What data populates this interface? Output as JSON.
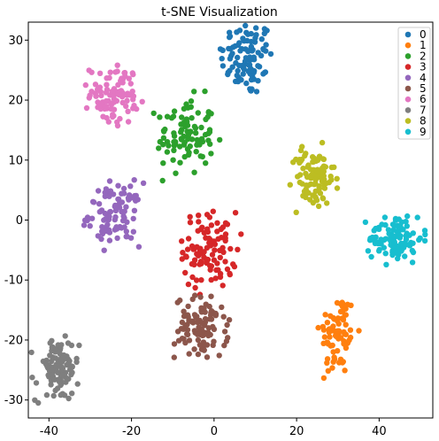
{
  "chart_data": {
    "type": "scatter",
    "title": "t-SNE Visualization",
    "xlabel": "",
    "ylabel": "",
    "xlim": [
      -45,
      53
    ],
    "ylim": [
      -33,
      33
    ],
    "xticks": [
      -40,
      -20,
      0,
      20,
      40
    ],
    "yticks": [
      -30,
      -20,
      -10,
      0,
      10,
      20,
      30
    ],
    "grid": false,
    "legend_position": "top-right",
    "series": [
      {
        "name": "0",
        "color": "#1f77b4",
        "center": [
          8,
          27
        ],
        "spread": [
          3.2,
          3.2
        ],
        "n": 100
      },
      {
        "name": "1",
        "color": "#ff7f0e",
        "center": [
          30,
          -19
        ],
        "spread": [
          2.2,
          3.5
        ],
        "n": 80
      },
      {
        "name": "2",
        "color": "#2ca02c",
        "center": [
          -7,
          14
        ],
        "spread": [
          3.5,
          3.2
        ],
        "n": 95
      },
      {
        "name": "3",
        "color": "#d62728",
        "center": [
          -1,
          -5
        ],
        "spread": [
          3.2,
          3.2
        ],
        "n": 100
      },
      {
        "name": "4",
        "color": "#9467bd",
        "center": [
          -24,
          1
        ],
        "spread": [
          3.2,
          2.6
        ],
        "n": 95
      },
      {
        "name": "5",
        "color": "#8c564b",
        "center": [
          -3,
          -18
        ],
        "spread": [
          3.2,
          2.6
        ],
        "n": 100
      },
      {
        "name": "6",
        "color": "#e377c2",
        "center": [
          -24,
          21
        ],
        "spread": [
          3.0,
          2.4
        ],
        "n": 95
      },
      {
        "name": "7",
        "color": "#7f7f7f",
        "center": [
          -38,
          -25
        ],
        "spread": [
          2.6,
          2.6
        ],
        "n": 100
      },
      {
        "name": "8",
        "color": "#bcbd22",
        "center": [
          24,
          7
        ],
        "spread": [
          2.6,
          2.6
        ],
        "n": 95
      },
      {
        "name": "9",
        "color": "#17becf",
        "center": [
          44,
          -3
        ],
        "spread": [
          3.2,
          2.0
        ],
        "n": 100
      }
    ]
  }
}
